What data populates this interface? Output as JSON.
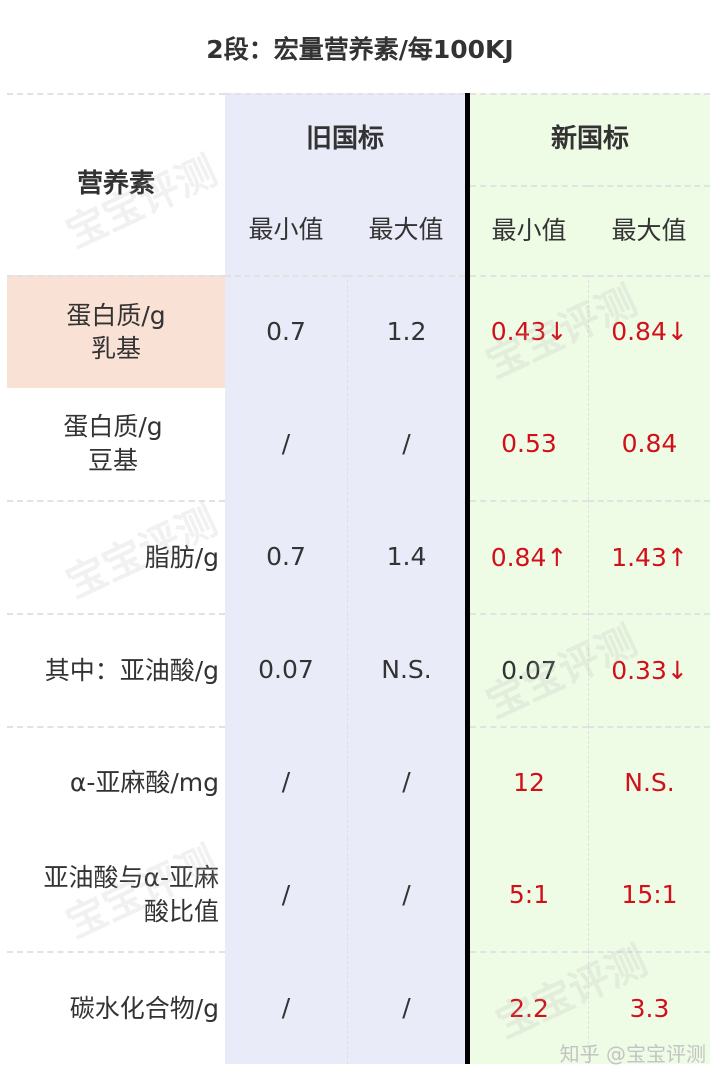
{
  "title": "2段：宏量营养素/每100KJ",
  "header": {
    "nutrient": "营养素",
    "old_standard": "旧国标",
    "new_standard": "新国标",
    "min": "最小值",
    "max": "最大值"
  },
  "rows": [
    {
      "label": "蛋白质/g\n乳基",
      "old_min": "0.7",
      "old_max": "1.2",
      "new_min": "0.43↓",
      "new_max": "0.84↓",
      "highlight": true
    },
    {
      "label": "蛋白质/g\n豆基",
      "old_min": "/",
      "old_max": "/",
      "new_min": "0.53",
      "new_max": "0.84"
    },
    {
      "label": "脂肪/g",
      "old_min": "0.7",
      "old_max": "1.4",
      "new_min": "0.84↑",
      "new_max": "1.43↑"
    },
    {
      "label": "其中：亚油酸/g",
      "old_min": "0.07",
      "old_max": "N.S.",
      "new_min": "0.07",
      "new_max": "0.33↓"
    },
    {
      "label": "α-亚麻酸/mg",
      "old_min": "/",
      "old_max": "/",
      "new_min": "12",
      "new_max": "N.S."
    },
    {
      "label": "亚油酸与α-亚麻\n酸比值",
      "old_min": "/",
      "old_max": "/",
      "new_min": "5:1",
      "new_max": "15:1"
    },
    {
      "label": "碳水化合物/g",
      "old_min": "/",
      "old_max": "/",
      "new_min": "2.2",
      "new_max": "3.3"
    }
  ],
  "watermark": "宝宝评测",
  "credit": "知乎 @宝宝评测",
  "colors": {
    "old_bg": "#e9ebf9",
    "new_bg": "#eefbe5",
    "highlight_bg": "#fae1d5",
    "changed_value": "#d2101a"
  }
}
